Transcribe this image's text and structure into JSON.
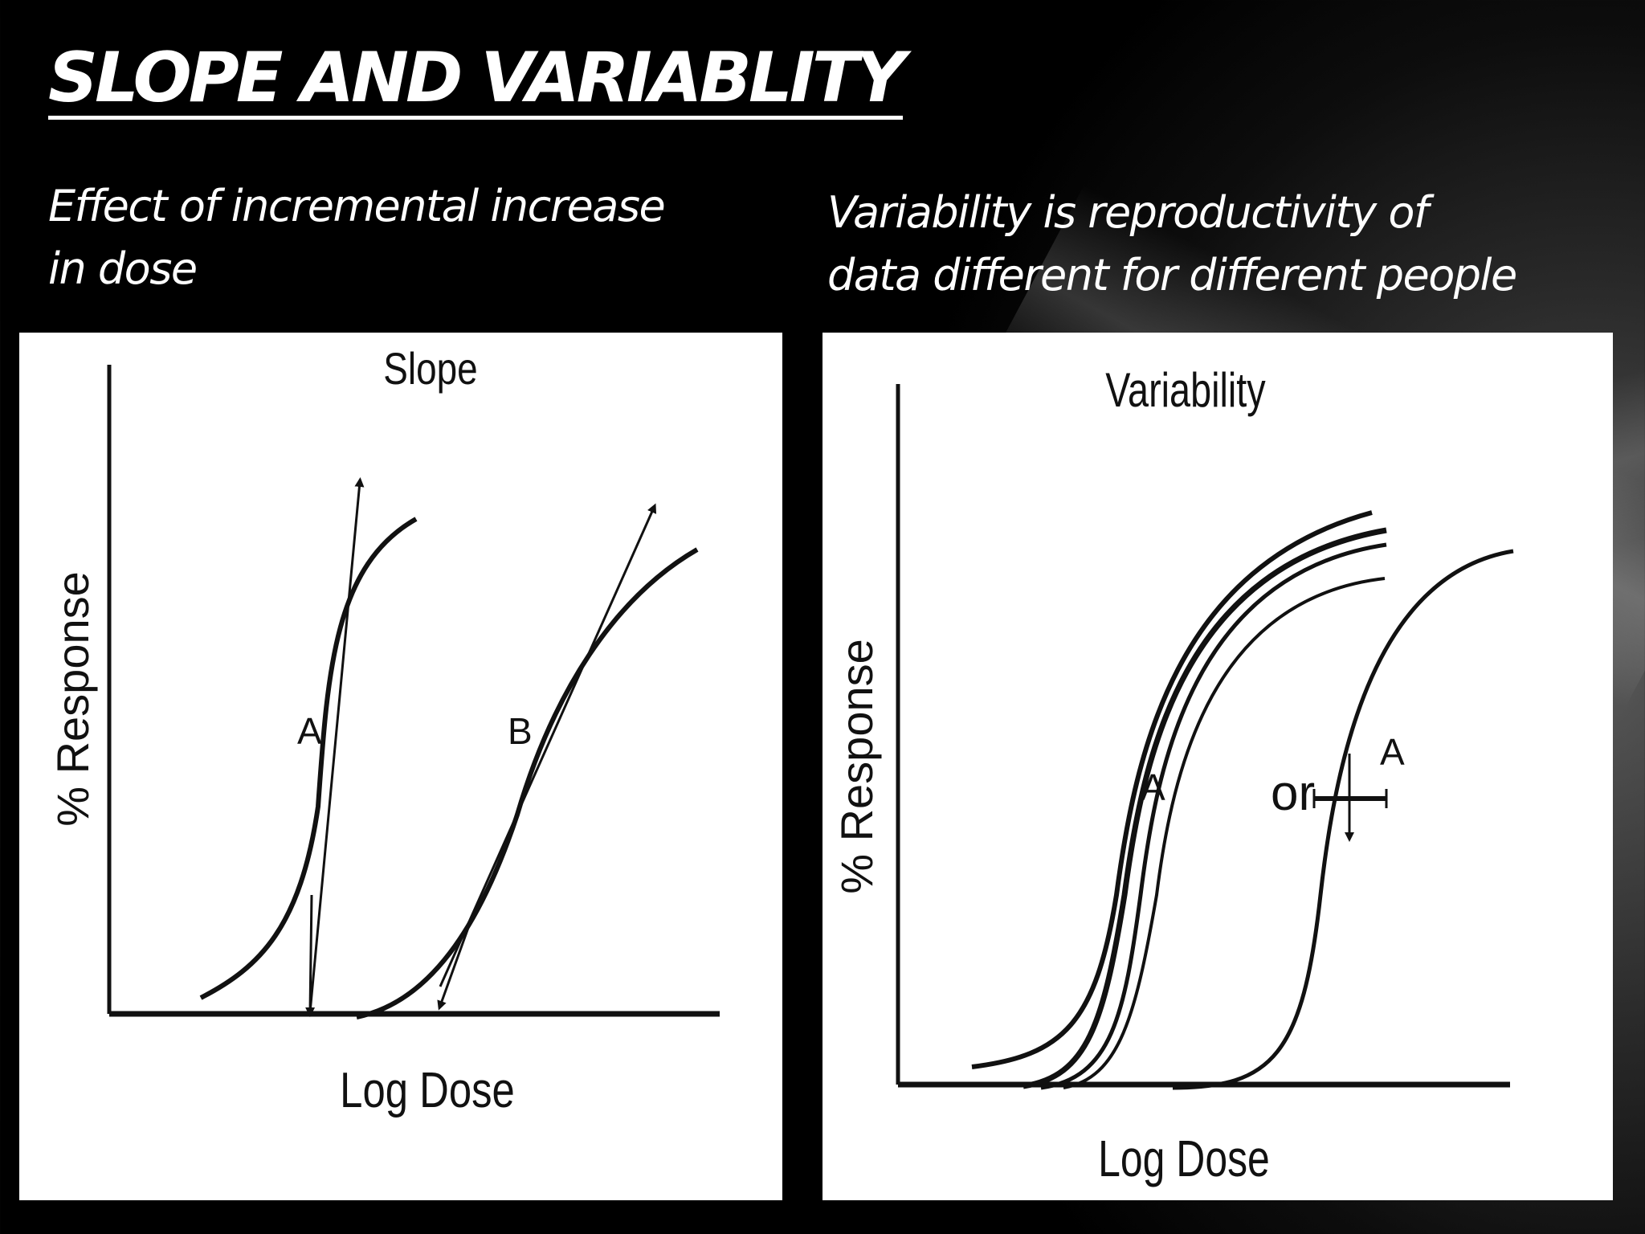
{
  "slide": {
    "title": "SLOPE AND VARIABLITY",
    "left_caption": [
      "Effect of incremental increase",
      "in dose"
    ],
    "right_caption": [
      "Variability is reproductivity of",
      "data different for different people"
    ]
  },
  "slope_figure": {
    "title": "Slope",
    "y_axis_label": "% Response",
    "x_axis_label": "Log Dose",
    "curve_labels": [
      "A",
      "B"
    ]
  },
  "variability_figure": {
    "title": "Variability",
    "y_axis_label": "% Response",
    "x_axis_label": "Log Dose",
    "curve_label": "A",
    "or_text": "or",
    "single_curve_label": "A"
  }
}
